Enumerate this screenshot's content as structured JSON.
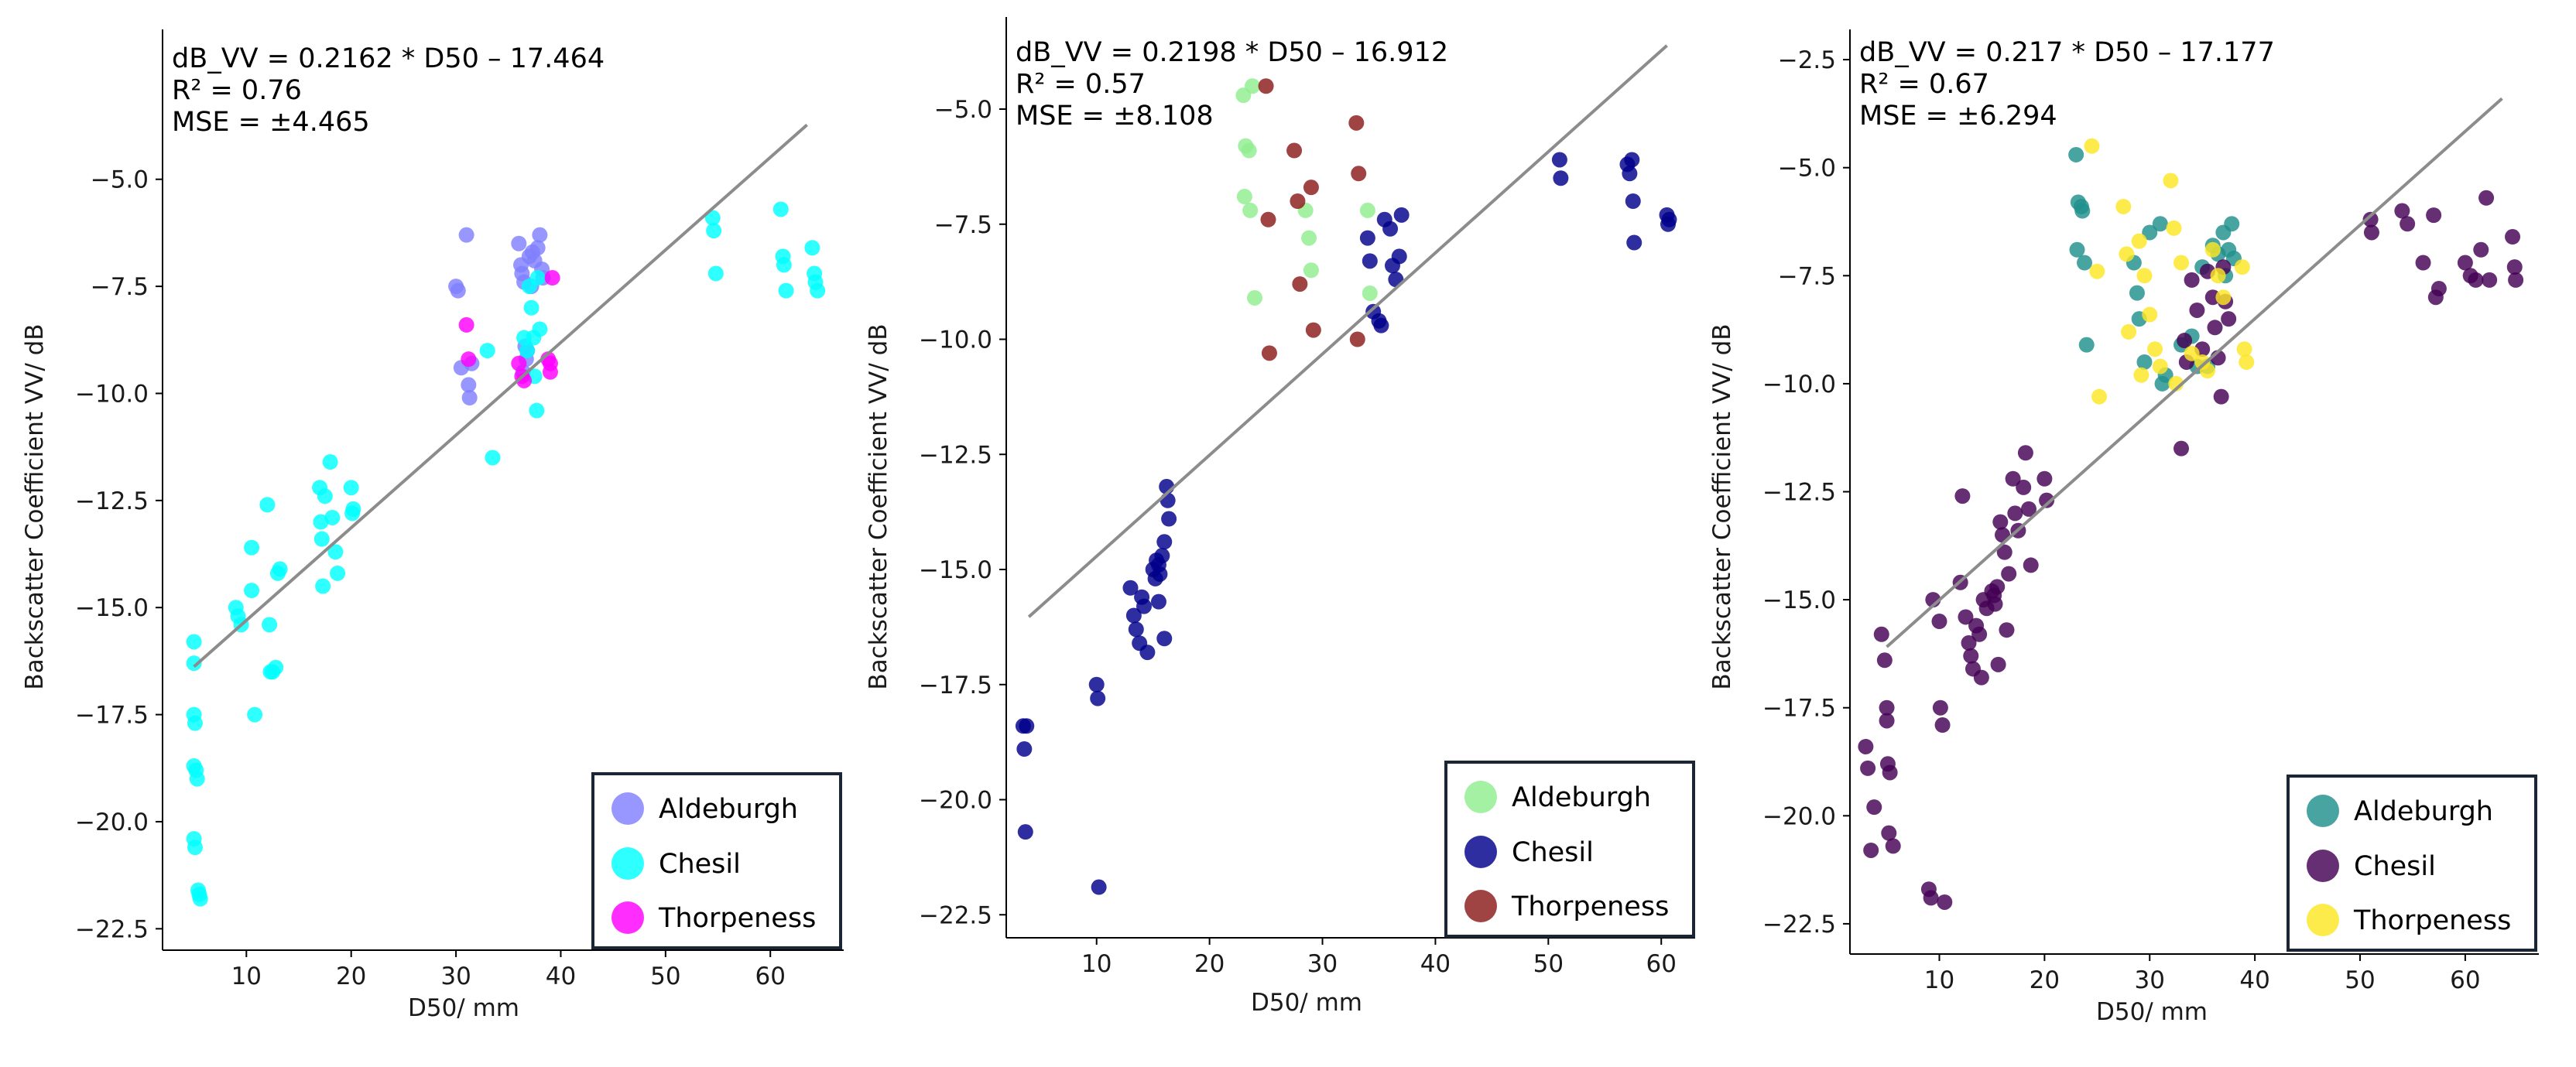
{
  "chart_data": [
    {
      "type": "scatter",
      "xlabel": "D50/ mm",
      "ylabel": "Backscatter Coefficient VV/ dB",
      "xlim": [
        2,
        67
      ],
      "ylim": [
        -23,
        -1.5
      ],
      "xticks": [
        10,
        20,
        30,
        40,
        50,
        60
      ],
      "yticks": [
        -22.5,
        -20.0,
        -17.5,
        -15.0,
        -12.5,
        -10.0,
        -7.5,
        -5.0
      ],
      "annotations": [
        "dB_VV = 0.2162 * D50 – 17.464",
        "R² = 0.76",
        "MSE = ±4.465"
      ],
      "fit_line": {
        "x": [
          5,
          63.5
        ],
        "y": [
          -16.38,
          -3.73
        ],
        "color": "#8c8c8c"
      },
      "legend": {
        "position": "lower-right"
      },
      "series": [
        {
          "name": "Aldeburgh",
          "color": "#8080ff",
          "x": [
            30,
            30.2,
            30.5,
            31,
            31.2,
            31.3,
            31.5,
            36,
            36.2,
            36.3,
            36.5,
            36.6,
            36.7,
            37,
            37.2,
            37.5,
            37.8,
            38,
            38.2,
            38.3,
            36.4,
            36.8,
            37.3
          ],
          "y": [
            -7.5,
            -7.6,
            -9.4,
            -6.3,
            -9.8,
            -10.1,
            -9.3,
            -6.5,
            -7.0,
            -7.2,
            -7.4,
            -8.9,
            -9.2,
            -6.8,
            -7.5,
            -6.9,
            -6.6,
            -6.3,
            -7.1,
            -7.3,
            -9.5,
            -9.0,
            -6.7
          ]
        },
        {
          "name": "Chesil",
          "color": "#00ffff",
          "x": [
            5,
            5,
            5,
            5.1,
            5,
            5.2,
            5.3,
            5,
            5.1,
            5.4,
            5.5,
            5.6,
            9,
            9.2,
            9.5,
            10.5,
            10.5,
            10.8,
            12,
            12.2,
            12.3,
            12.5,
            12.8,
            13,
            13.2,
            17,
            17.1,
            17.2,
            17.3,
            17.5,
            18,
            18.2,
            18.5,
            18.7,
            20,
            20.1,
            20.2,
            33,
            33.5,
            37,
            37.2,
            37.4,
            37.5,
            37.7,
            37.8,
            38,
            36.5,
            36.8,
            54.5,
            54.6,
            54.8,
            61,
            61.2,
            61.3,
            61.5,
            64,
            64.2,
            64.3,
            64.5
          ],
          "y": [
            -15.8,
            -16.3,
            -17.5,
            -17.7,
            -18.7,
            -18.8,
            -19.0,
            -20.4,
            -20.6,
            -21.6,
            -21.7,
            -21.8,
            -15.0,
            -15.2,
            -15.4,
            -13.6,
            -14.6,
            -17.5,
            -12.6,
            -15.4,
            -16.5,
            -16.5,
            -16.4,
            -14.2,
            -14.1,
            -12.2,
            -13.0,
            -13.4,
            -14.5,
            -12.4,
            -11.6,
            -12.9,
            -13.7,
            -14.2,
            -12.2,
            -12.8,
            -12.7,
            -9.0,
            -11.5,
            -7.5,
            -8.0,
            -8.7,
            -9.6,
            -10.4,
            -7.3,
            -8.5,
            -8.7,
            -9.0,
            -5.9,
            -6.2,
            -7.2,
            -5.7,
            -6.8,
            -7.0,
            -7.6,
            -6.6,
            -7.2,
            -7.4,
            -7.6
          ]
        },
        {
          "name": "Thorpeness",
          "color": "#ff00ff",
          "x": [
            31,
            31.2,
            36,
            36.3,
            36.5,
            38.8,
            39,
            39.2,
            39
          ],
          "y": [
            -8.4,
            -9.2,
            -9.3,
            -9.6,
            -9.7,
            -9.2,
            -9.5,
            -7.3,
            -9.3
          ]
        }
      ]
    },
    {
      "type": "scatter",
      "xlabel": "D50/ mm",
      "ylabel": "Backscatter Coefficient VV/ dB",
      "xlim": [
        2,
        63
      ],
      "ylim": [
        -23,
        -3
      ],
      "xticks": [
        10,
        20,
        30,
        40,
        50,
        60
      ],
      "yticks": [
        -22.5,
        -20.0,
        -17.5,
        -15.0,
        -12.5,
        -10.0,
        -7.5,
        -5.0
      ],
      "annotations": [
        "dB_VV = 0.2198 * D50 – 16.912",
        "R² = 0.57",
        "MSE = ±8.108"
      ],
      "fit_line": {
        "x": [
          4,
          60.5
        ],
        "y": [
          -16.03,
          -3.62
        ],
        "color": "#8c8c8c"
      },
      "legend": {
        "position": "lower-right"
      },
      "series": [
        {
          "name": "Aldeburgh",
          "color": "#90ee90",
          "x": [
            23,
            23.2,
            23.5,
            23.8,
            23.1,
            23.6,
            24,
            28.5,
            28.8,
            29,
            34,
            34.2
          ],
          "y": [
            -4.7,
            -5.8,
            -5.9,
            -4.5,
            -6.9,
            -7.2,
            -9.1,
            -7.2,
            -7.8,
            -8.5,
            -7.2,
            -9.0
          ]
        },
        {
          "name": "Chesil",
          "color": "#00008b",
          "x": [
            3.5,
            3.6,
            3.7,
            3.8,
            10,
            10.1,
            10.2,
            13,
            13.3,
            13.5,
            13.8,
            14,
            14.2,
            14.5,
            15,
            15.2,
            15.3,
            15.5,
            15.6,
            15.8,
            16,
            16.2,
            16.3,
            16.4,
            15.5,
            16,
            34,
            34.2,
            34.5,
            35,
            35.2,
            35.5,
            36,
            36.2,
            36.5,
            36.8,
            37,
            51,
            51.1,
            57,
            57.2,
            57.4,
            57.5,
            57.6,
            60.5,
            60.6,
            60.7
          ],
          "y": [
            -18.4,
            -18.9,
            -20.7,
            -18.4,
            -17.5,
            -17.8,
            -21.9,
            -15.4,
            -16.0,
            -16.3,
            -16.6,
            -15.6,
            -15.8,
            -16.8,
            -15.0,
            -15.2,
            -14.8,
            -14.9,
            -15.1,
            -14.7,
            -16.5,
            -13.2,
            -13.5,
            -13.9,
            -15.7,
            -14.4,
            -7.8,
            -8.3,
            -9.4,
            -9.6,
            -9.7,
            -7.4,
            -7.6,
            -8.4,
            -8.7,
            -8.2,
            -7.3,
            -6.1,
            -6.5,
            -6.2,
            -6.4,
            -6.1,
            -7.0,
            -7.9,
            -7.3,
            -7.5,
            -7.4
          ]
        },
        {
          "name": "Thorpeness",
          "color": "#8b1a1a",
          "x": [
            25,
            25.2,
            25.3,
            27.5,
            27.8,
            28,
            29,
            29.2,
            33,
            33.2,
            33.1
          ],
          "y": [
            -4.5,
            -7.4,
            -10.3,
            -5.9,
            -7.0,
            -8.8,
            -6.7,
            -9.8,
            -5.3,
            -6.4,
            -10.0
          ]
        }
      ]
    },
    {
      "type": "scatter",
      "xlabel": "D50/ mm",
      "ylabel": "Backscatter Coefficient VV/ dB",
      "xlim": [
        1.5,
        67
      ],
      "ylim": [
        -23.2,
        -1.8
      ],
      "xticks": [
        10,
        20,
        30,
        40,
        50,
        60
      ],
      "yticks": [
        -22.5,
        -20.0,
        -17.5,
        -15.0,
        -12.5,
        -10.0,
        -7.5,
        -5.0,
        -2.5
      ],
      "annotations": [
        "dB_VV = 0.217 * D50 – 17.177",
        "R² = 0.67",
        "MSE = ±6.294"
      ],
      "fit_line": {
        "x": [
          5,
          63.5
        ],
        "y": [
          -16.09,
          -3.4
        ],
        "color": "#8c8c8c"
      },
      "legend": {
        "position": "lower-right"
      },
      "series": [
        {
          "name": "Aldeburgh",
          "color": "#20908c",
          "x": [
            23,
            23.2,
            23.5,
            23.8,
            23.1,
            23.6,
            24,
            28.5,
            28.8,
            29,
            29.5,
            30,
            31,
            31.5,
            31.2,
            35,
            35.5,
            36,
            36.5,
            37,
            37.2,
            37.5,
            37.8,
            38,
            33,
            34,
            34.5
          ],
          "y": [
            -4.7,
            -5.8,
            -5.9,
            -7.2,
            -6.9,
            -6.0,
            -9.1,
            -7.2,
            -7.9,
            -8.5,
            -9.5,
            -6.5,
            -6.3,
            -9.8,
            -10.0,
            -7.3,
            -9.6,
            -6.8,
            -7.0,
            -6.5,
            -7.5,
            -6.9,
            -6.3,
            -7.1,
            -9.1,
            -8.9,
            -9.6
          ]
        },
        {
          "name": "Chesil",
          "color": "#440154",
          "x": [
            3,
            3.2,
            3.5,
            3.8,
            4.5,
            4.8,
            5,
            5,
            5.1,
            5.3,
            5.2,
            5.6,
            9,
            9.2,
            9.4,
            10,
            10.1,
            10.3,
            10.5,
            12,
            12.2,
            12.5,
            12.8,
            13,
            13.2,
            13.5,
            13.8,
            14,
            14.2,
            14.5,
            15,
            15.2,
            15.3,
            15.5,
            15.6,
            15.8,
            16,
            16.2,
            16.4,
            16.6,
            17,
            17.2,
            17.5,
            18,
            18.2,
            18.5,
            18.7,
            20,
            20.2,
            33,
            33.3,
            33.5,
            34,
            34.5,
            35,
            35.5,
            36,
            36.2,
            36.5,
            36.8,
            37,
            37.2,
            37.5,
            51,
            51.1,
            54,
            54.5,
            56,
            57,
            57.2,
            57.5,
            60,
            60.5,
            61,
            61.5,
            62,
            62.3,
            64.5,
            64.7,
            64.8
          ],
          "y": [
            -18.4,
            -18.9,
            -20.8,
            -19.8,
            -15.8,
            -16.4,
            -17.5,
            -17.8,
            -18.8,
            -19.0,
            -20.4,
            -20.7,
            -21.7,
            -21.9,
            -15.0,
            -15.5,
            -17.5,
            -17.9,
            -22.0,
            -14.6,
            -12.6,
            -15.4,
            -16.0,
            -16.3,
            -16.6,
            -15.6,
            -15.8,
            -16.8,
            -15.0,
            -15.2,
            -14.8,
            -14.9,
            -15.1,
            -14.7,
            -16.5,
            -13.2,
            -13.5,
            -13.9,
            -15.7,
            -14.4,
            -12.2,
            -13.0,
            -13.4,
            -12.4,
            -11.6,
            -12.9,
            -14.2,
            -12.2,
            -12.7,
            -11.5,
            -9.0,
            -9.5,
            -7.6,
            -8.3,
            -9.2,
            -7.4,
            -8.0,
            -8.7,
            -9.4,
            -10.3,
            -7.3,
            -8.1,
            -8.5,
            -6.2,
            -6.5,
            -6.0,
            -6.3,
            -7.2,
            -6.1,
            -8.0,
            -7.8,
            -7.2,
            -7.5,
            -7.6,
            -6.9,
            -5.7,
            -7.6,
            -6.6,
            -7.3,
            -7.6
          ]
        },
        {
          "name": "Thorpeness",
          "color": "#fde725",
          "x": [
            24.5,
            25,
            25.2,
            27.5,
            27.8,
            28,
            29,
            29.2,
            29.5,
            30,
            30.5,
            31,
            32,
            32.3,
            32.5,
            33,
            34,
            35,
            35.5,
            36,
            36.5,
            37,
            38.8,
            39,
            39.2
          ],
          "y": [
            -4.5,
            -7.4,
            -10.3,
            -5.9,
            -7.0,
            -8.8,
            -6.7,
            -9.8,
            -7.5,
            -8.4,
            -9.2,
            -9.6,
            -5.3,
            -6.4,
            -10.0,
            -7.2,
            -9.3,
            -9.5,
            -9.7,
            -6.9,
            -7.5,
            -8.0,
            -7.3,
            -9.2,
            -9.5
          ]
        }
      ]
    }
  ]
}
